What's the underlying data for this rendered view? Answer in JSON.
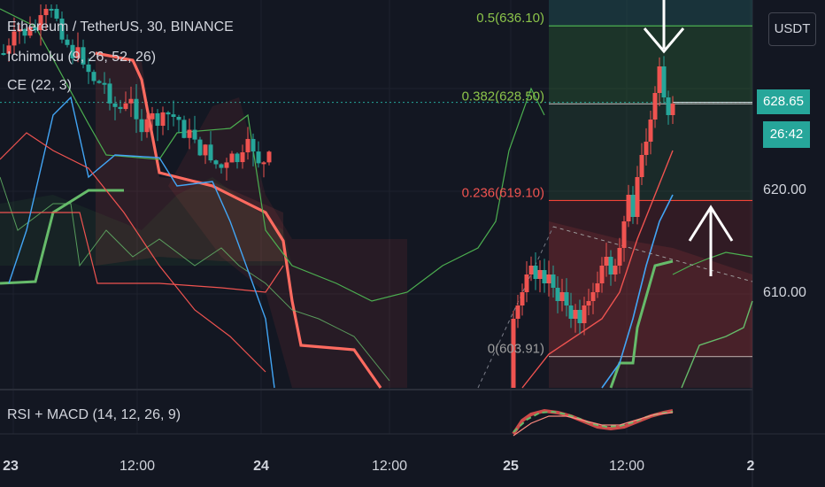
{
  "header": {
    "title": "Ethereum / TetherUS, 30, BINANCE",
    "ind1": "Ichimoku (9, 26, 52, 26)",
    "ind2": "CE (22, 3)"
  },
  "subpane": {
    "title": "RSI + MACD (14, 12, 26, 9)"
  },
  "currency_button": "USDT",
  "last_price": "628.65",
  "countdown": "26:42",
  "price_axis": {
    "ticks": [
      "620.00",
      "610.00"
    ]
  },
  "colors": {
    "up": "#26a69a",
    "down": "#ef5350",
    "background": "#131722",
    "fib_green": "#4caf50",
    "fib_red": "#f44336"
  },
  "chart_data": {
    "type": "candlestick",
    "symbol": "ETHUSDT",
    "interval": "30",
    "exchange": "BINANCE",
    "x_ticks": [
      "23",
      "12:00",
      "24",
      "12:00",
      "25",
      "12:00",
      "2"
    ],
    "y_ticks": [
      620.0,
      610.0
    ],
    "ylim": [
      601.0,
      640.0
    ],
    "fib_levels": [
      {
        "label": "0.5(636.10)",
        "ratio": 0.5,
        "price": 636.1
      },
      {
        "label": "0.382(628.50)",
        "ratio": 0.382,
        "price": 628.5
      },
      {
        "label": "0.236(619.10)",
        "ratio": 0.236,
        "price": 619.1
      },
      {
        "label": "0(603.91)",
        "ratio": 0,
        "price": 603.91
      }
    ],
    "last_close": 628.65,
    "annotations": [
      "arrow-down",
      "arrow-up"
    ],
    "grid": true
  }
}
